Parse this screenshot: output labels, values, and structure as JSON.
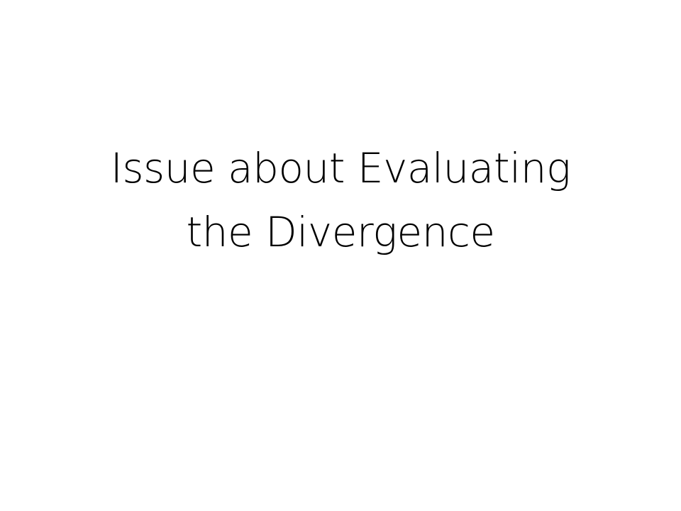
{
  "slide": {
    "title_lines": [
      "Issue about Evaluating",
      "the Divergence"
    ]
  }
}
